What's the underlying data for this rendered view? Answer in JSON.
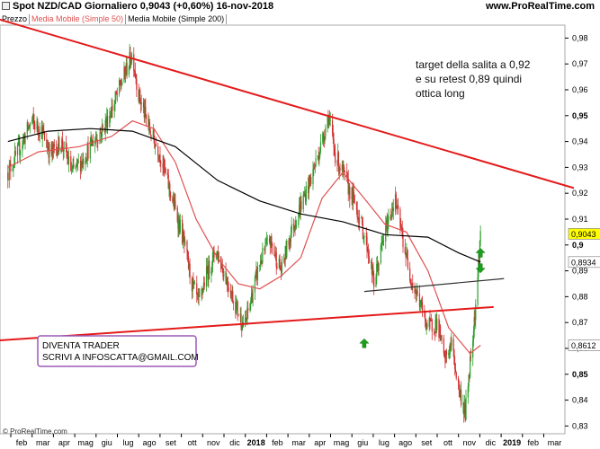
{
  "header": {
    "title": "Spot NZD/CAD   Giornaliero   0,9043 (+0,60%)   16-nov-2018",
    "site": "www.ProRealTime.com"
  },
  "legend": {
    "price": "Prezzo",
    "ma50": "Media Mobile (Simple 50)",
    "ma200": "Media Mobile (Simple 200)"
  },
  "colors": {
    "up": "#2a9d2a",
    "down": "#d03030",
    "ma50": "#e05050",
    "ma200": "#000000",
    "trendline": "#e41a1a",
    "box_border": "#9b59b6",
    "arrow": "#1aa01a"
  },
  "annotations": {
    "note_lines": [
      "target della salita a 0,92",
      "e su retest 0,89 quindi",
      "ottica long"
    ],
    "box_lines": [
      "DIVENTA TRADER",
      "SCRIVI A INFOSCATTA@GMAIL.COM"
    ]
  },
  "copyright": "© ProRealTime.com",
  "chart_data": {
    "type": "candlestick",
    "title": "Spot NZD/CAD Giornaliero",
    "y_ticks": [
      "0,98",
      "0,97",
      "0,96",
      "0,95",
      "0,94",
      "0,93",
      "0,92",
      "0,91",
      "0,9",
      "0,89",
      "0,88",
      "0,87",
      "0,86",
      "0,85",
      "0,84",
      "0,83"
    ],
    "y_tick_values": [
      0.98,
      0.97,
      0.96,
      0.95,
      0.94,
      0.93,
      0.92,
      0.91,
      0.9,
      0.89,
      0.88,
      0.87,
      0.86,
      0.85,
      0.84,
      0.83
    ],
    "bold_ticks": [
      "0,95",
      "0,9",
      "0,85"
    ],
    "ylim": [
      0.827,
      0.985
    ],
    "x_labels": [
      "feb",
      "mar",
      "apr",
      "mag",
      "giu",
      "lug",
      "ago",
      "set",
      "ott",
      "nov",
      "dic",
      "2018",
      "feb",
      "mar",
      "apr",
      "mag",
      "giu",
      "lug",
      "ago",
      "set",
      "ott",
      "nov",
      "dic",
      "2019",
      "feb",
      "mar"
    ],
    "bold_x_labels": [
      "2018",
      "2019"
    ],
    "price_labels": [
      {
        "value": 0.9043,
        "text": "0,9043",
        "bg": "#ffff00"
      },
      {
        "value": 0.8934,
        "text": "0,8934",
        "bg": "#ffffff"
      },
      {
        "value": 0.8612,
        "text": "0,8612",
        "bg": "#ffffff"
      }
    ],
    "close_path": [
      [
        "2017-01-02",
        0.928
      ],
      [
        "2017-01-15",
        0.935
      ],
      [
        "2017-02-05",
        0.948
      ],
      [
        "2017-02-20",
        0.944
      ],
      [
        "2017-03-05",
        0.935
      ],
      [
        "2017-03-20",
        0.94
      ],
      [
        "2017-04-05",
        0.928
      ],
      [
        "2017-04-20",
        0.933
      ],
      [
        "2017-05-05",
        0.94
      ],
      [
        "2017-05-20",
        0.945
      ],
      [
        "2017-06-05",
        0.955
      ],
      [
        "2017-06-18",
        0.965
      ],
      [
        "2017-07-01",
        0.974
      ],
      [
        "2017-07-10",
        0.958
      ],
      [
        "2017-07-25",
        0.945
      ],
      [
        "2017-08-10",
        0.935
      ],
      [
        "2017-08-25",
        0.92
      ],
      [
        "2017-09-10",
        0.905
      ],
      [
        "2017-09-25",
        0.885
      ],
      [
        "2017-10-05",
        0.877
      ],
      [
        "2017-10-15",
        0.888
      ],
      [
        "2017-10-30",
        0.898
      ],
      [
        "2017-11-15",
        0.886
      ],
      [
        "2017-12-01",
        0.874
      ],
      [
        "2017-12-10",
        0.868
      ],
      [
        "2017-12-20",
        0.88
      ],
      [
        "2018-01-01",
        0.893
      ],
      [
        "2018-01-15",
        0.902
      ],
      [
        "2018-02-01",
        0.89
      ],
      [
        "2018-02-15",
        0.905
      ],
      [
        "2018-03-01",
        0.915
      ],
      [
        "2018-03-15",
        0.925
      ],
      [
        "2018-04-01",
        0.94
      ],
      [
        "2018-04-10",
        0.95
      ],
      [
        "2018-04-20",
        0.935
      ],
      [
        "2018-05-05",
        0.925
      ],
      [
        "2018-05-20",
        0.915
      ],
      [
        "2018-06-05",
        0.9
      ],
      [
        "2018-06-15",
        0.885
      ],
      [
        "2018-07-01",
        0.905
      ],
      [
        "2018-07-15",
        0.918
      ],
      [
        "2018-08-01",
        0.895
      ],
      [
        "2018-08-10",
        0.885
      ],
      [
        "2018-08-20",
        0.878
      ],
      [
        "2018-09-01",
        0.868
      ],
      [
        "2018-09-15",
        0.87
      ],
      [
        "2018-09-25",
        0.855
      ],
      [
        "2018-10-05",
        0.862
      ],
      [
        "2018-10-15",
        0.845
      ],
      [
        "2018-10-25",
        0.835
      ],
      [
        "2018-11-01",
        0.855
      ],
      [
        "2018-11-10",
        0.88
      ],
      [
        "2018-11-16",
        0.9043
      ]
    ],
    "series": [
      {
        "name": "Media Mobile (Simple 50)",
        "points": [
          [
            "2017-01-02",
            0.93
          ],
          [
            "2017-02-15",
            0.936
          ],
          [
            "2017-04-15",
            0.938
          ],
          [
            "2017-06-01",
            0.942
          ],
          [
            "2017-07-01",
            0.948
          ],
          [
            "2017-08-01",
            0.945
          ],
          [
            "2017-09-01",
            0.932
          ],
          [
            "2017-10-01",
            0.91
          ],
          [
            "2017-11-01",
            0.895
          ],
          [
            "2017-12-01",
            0.885
          ],
          [
            "2018-01-01",
            0.883
          ],
          [
            "2018-02-01",
            0.888
          ],
          [
            "2018-03-01",
            0.895
          ],
          [
            "2018-04-01",
            0.918
          ],
          [
            "2018-05-01",
            0.928
          ],
          [
            "2018-06-01",
            0.918
          ],
          [
            "2018-07-01",
            0.908
          ],
          [
            "2018-08-01",
            0.905
          ],
          [
            "2018-09-01",
            0.89
          ],
          [
            "2018-10-01",
            0.868
          ],
          [
            "2018-11-01",
            0.858
          ],
          [
            "2018-11-16",
            0.8612
          ]
        ]
      },
      {
        "name": "Media Mobile (Simple 200)",
        "points": [
          [
            "2017-01-02",
            0.94
          ],
          [
            "2017-03-01",
            0.944
          ],
          [
            "2017-05-01",
            0.945
          ],
          [
            "2017-07-01",
            0.944
          ],
          [
            "2017-09-01",
            0.938
          ],
          [
            "2017-11-01",
            0.925
          ],
          [
            "2018-01-01",
            0.917
          ],
          [
            "2018-03-01",
            0.912
          ],
          [
            "2018-05-01",
            0.909
          ],
          [
            "2018-07-01",
            0.904
          ],
          [
            "2018-09-01",
            0.903
          ],
          [
            "2018-10-15",
            0.897
          ],
          [
            "2018-11-16",
            0.8934
          ]
        ]
      }
    ],
    "trendlines": [
      {
        "name": "resistance",
        "from": [
          "2016-11-15",
          0.99
        ],
        "to": [
          "2019-03-31",
          0.922
        ]
      },
      {
        "name": "support",
        "from": [
          "2016-12-15",
          0.863
        ],
        "to": [
          "2018-12-05",
          0.876
        ]
      },
      {
        "name": "neckline",
        "from": [
          "2018-06-01",
          0.882
        ],
        "to": [
          "2018-12-20",
          0.887
        ]
      }
    ],
    "arrows": [
      {
        "date": "2018-06-01",
        "value": 0.862,
        "dir": "up"
      },
      {
        "date": "2018-11-16",
        "value": 0.897,
        "dir": "up"
      },
      {
        "date": "2018-11-16",
        "value": 0.891,
        "dir": "down"
      }
    ]
  }
}
